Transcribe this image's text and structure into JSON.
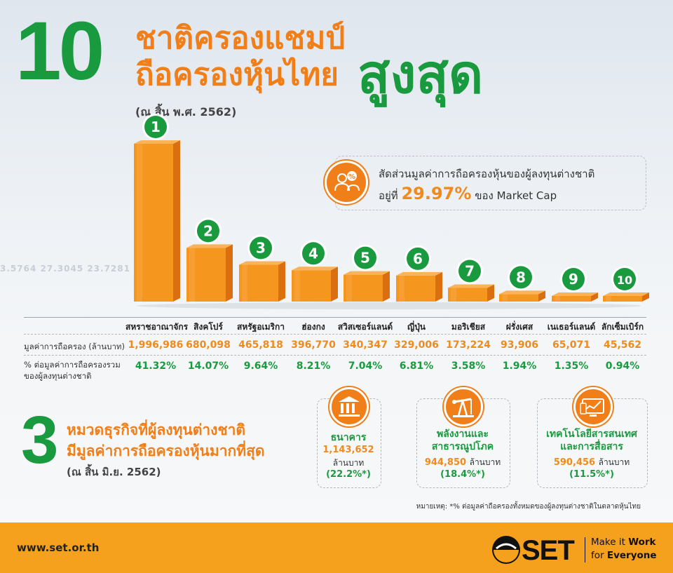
{
  "header": {
    "big_number": "10",
    "line1": "ชาติครองแชมป์",
    "line2": "ถือครองหุ้นไทย",
    "emphasis": "สูงสุด",
    "date": "(ณ สิ้น พ.ศ. 2562)"
  },
  "background_ticker": "3.5764   27.3045   23.7281   4.",
  "callout": {
    "line1": "สัดส่วนมูลค่าการถือครองหุ้นของผู้ลงทุนต่างชาติ",
    "line2_prefix": "อยู่ที่",
    "value": "29.97%",
    "line2_suffix": "ของ Market Cap",
    "icon": "investor-percent-icon"
  },
  "table": {
    "row1_label": "มูลค่าการถือครอง (ล้านบาท)",
    "row2_label_1": "% ต่อมูลค่าการถือครองรวม",
    "row2_label_2": "ของผู้ลงทุนต่างชาติ"
  },
  "chart_data": {
    "type": "bar",
    "ranks": [
      "1",
      "2",
      "3",
      "4",
      "5",
      "6",
      "7",
      "8",
      "9",
      "10"
    ],
    "categories": [
      "สหราชอาณาจักร",
      "สิงคโปร์",
      "สหรัฐอเมริกา",
      "ฮ่องกง",
      "สวิสเซอร์แลนด์",
      "ญี่ปุ่น",
      "มอริเชียส",
      "ฝรั่งเศส",
      "เนเธอร์แลนด์",
      "ลักเซ็มเบิร์ก"
    ],
    "values": [
      1996986,
      680098,
      465818,
      396770,
      340347,
      329006,
      173224,
      93906,
      65071,
      45562
    ],
    "value_labels": [
      "1,996,986",
      "680,098",
      "465,818",
      "396,770",
      "340,347",
      "329,006",
      "173,224",
      "93,906",
      "65,071",
      "45,562"
    ],
    "percent_labels": [
      "41.32%",
      "14.07%",
      "9.64%",
      "8.21%",
      "7.04%",
      "6.81%",
      "3.58%",
      "1.94%",
      "1.35%",
      "0.94%"
    ],
    "bar_color": "#f5961e",
    "badge_color": "#1a9a3f"
  },
  "sectors": {
    "big_number": "3",
    "line1": "หมวดธุรกิจที่ผู้ลงทุนต่างชาติ",
    "line2": "มีมูลค่าการถือครองหุ้นมากที่สุด",
    "date": "(ณ สิ้น มิ.ย. 2562)",
    "items": [
      {
        "name1": "ธนาคาร",
        "name2": "",
        "value": "1,143,652",
        "unit": "ล้านบาท",
        "pct": "(22.2%*)",
        "icon": "bank-icon"
      },
      {
        "name1": "พลังงานและ",
        "name2": "สาธารณูปโภค",
        "value": "944,850",
        "unit": "ล้านบาท",
        "pct": "(18.4%*)",
        "icon": "oil-pump-icon"
      },
      {
        "name1": "เทคโนโลยีสารสนเทศ",
        "name2": "และการสื่อสาร",
        "value": "590,456",
        "unit": "ล้านบาท",
        "pct": "(11.5%*)",
        "icon": "tech-chart-icon"
      }
    ],
    "note": "หมายเหตุ: *% ต่อมูลค่าถือครองทั้งหมดของผู้ลงทุนต่างชาติในตลาดหุ้นไทย"
  },
  "footer": {
    "url": "www.set.or.th",
    "logo_text": "SET",
    "slogan_1a": "Make it ",
    "slogan_1b": "Work",
    "slogan_2a": "for ",
    "slogan_2b": "Everyone"
  },
  "colors": {
    "orange": "#f07f1a",
    "green": "#1a9a3f",
    "footer": "#f6a11d"
  }
}
